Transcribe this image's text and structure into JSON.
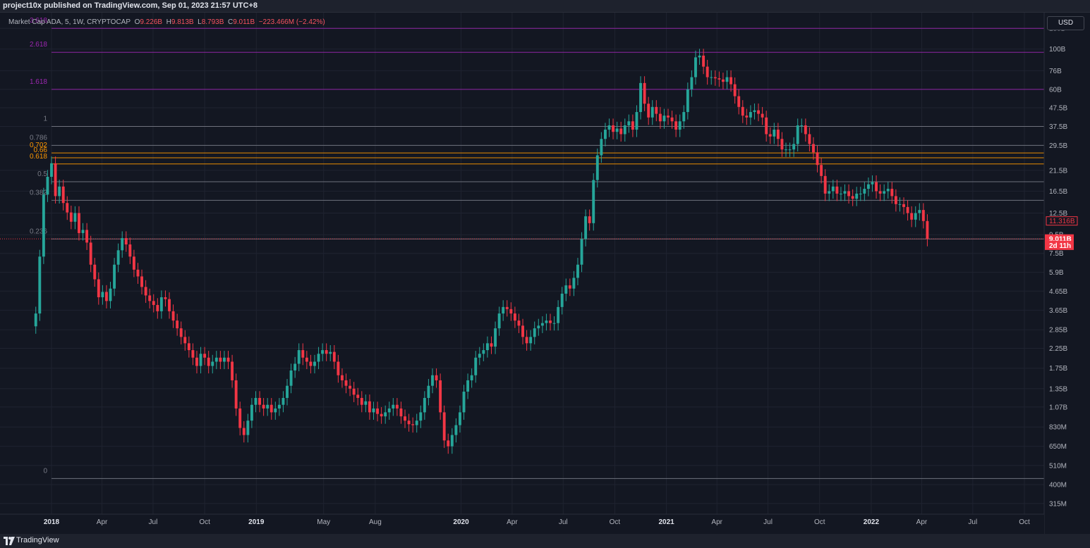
{
  "header": {
    "publisher_line": "project10x published on TradingView.com, Sep 01, 2023 21:57 UTC+8"
  },
  "legend": {
    "symbol": "Market Cap ADA, 5, 1W, CRYPTOCAP",
    "o_label": "O",
    "o_value": "9.226B",
    "h_label": "H",
    "h_value": "9.813B",
    "l_label": "L",
    "l_value": "8.793B",
    "c_label": "C",
    "c_value": "9.011B",
    "change": "−223.466M (−2.42%)"
  },
  "currency_button": "USD",
  "footer": {
    "brand": "TradingView"
  },
  "colors": {
    "background": "#131722",
    "up": "#26a69a",
    "down": "#f23645",
    "grid": "#1f2330",
    "fib_purple": "#9c27b0",
    "fib_orange": "#ff9800",
    "fib_gray": "#787b86",
    "price_label": "#f23645"
  },
  "chart_data": {
    "type": "candlestick",
    "scale": "log",
    "y_ticks": [
      "130B",
      "100B",
      "76B",
      "60B",
      "47.5B",
      "37.5B",
      "29.5B",
      "21.5B",
      "16.5B",
      "12.5B",
      "9.5B",
      "7.5B",
      "5.9B",
      "4.65B",
      "3.65B",
      "2.85B",
      "2.25B",
      "1.75B",
      "1.35B",
      "1.07B",
      "830M",
      "650M",
      "510M",
      "400M",
      "315M"
    ],
    "y_tick_values": [
      130,
      100,
      76,
      60,
      47.5,
      37.5,
      29.5,
      21.5,
      16.5,
      12.5,
      9.5,
      7.5,
      5.9,
      4.65,
      3.65,
      2.85,
      2.25,
      1.75,
      1.35,
      1.07,
      0.83,
      0.65,
      0.51,
      0.4,
      0.315
    ],
    "x_ticks": [
      {
        "label": "2018",
        "date": "2018-01-01",
        "year": true
      },
      {
        "label": "Apr",
        "date": "2018-04-01",
        "year": false
      },
      {
        "label": "Jul",
        "date": "2018-07-01",
        "year": false
      },
      {
        "label": "Oct",
        "date": "2018-10-01",
        "year": false
      },
      {
        "label": "2019",
        "date": "2019-01-01",
        "year": true
      },
      {
        "label": "May",
        "date": "2019-05-01",
        "year": false
      },
      {
        "label": "Aug",
        "date": "2019-08-01",
        "year": false
      },
      {
        "label": "2020",
        "date": "2020-01-01",
        "year": true
      },
      {
        "label": "Apr",
        "date": "2020-04-01",
        "year": false
      },
      {
        "label": "Jul",
        "date": "2020-07-01",
        "year": false
      },
      {
        "label": "Oct",
        "date": "2020-10-01",
        "year": false
      },
      {
        "label": "2021",
        "date": "2021-01-01",
        "year": true
      },
      {
        "label": "Apr",
        "date": "2021-04-01",
        "year": false
      },
      {
        "label": "Jul",
        "date": "2021-07-01",
        "year": false
      },
      {
        "label": "Oct",
        "date": "2021-10-01",
        "year": false
      },
      {
        "label": "2022",
        "date": "2022-01-01",
        "year": true
      },
      {
        "label": "Apr",
        "date": "2022-04-01",
        "year": false
      },
      {
        "label": "Jul",
        "date": "2022-07-01",
        "year": false
      },
      {
        "label": "Oct",
        "date": "2022-10-01",
        "year": false
      }
    ],
    "fib_levels": [
      {
        "label": "3.618",
        "value": 130,
        "color": "#9c27b0"
      },
      {
        "label": "2.618",
        "value": 96,
        "color": "#9c27b0"
      },
      {
        "label": "1.618",
        "value": 60,
        "color": "#9c27b0"
      },
      {
        "label": "1",
        "value": 37.5,
        "color": "#787b86"
      },
      {
        "label": "0.786",
        "value": 29.5,
        "color": "#787b86"
      },
      {
        "label": "0.702",
        "value": 26.8,
        "color": "#ff9800"
      },
      {
        "label": "0.66",
        "value": 25.2,
        "color": "#ff9800"
      },
      {
        "label": "0.618",
        "value": 23.3,
        "color": "#ff9800"
      },
      {
        "label": "0.5",
        "value": 18.6,
        "color": "#787b86"
      },
      {
        "label": "0.382",
        "value": 14.7,
        "color": "#787b86"
      },
      {
        "label": "0.236",
        "value": 9.0,
        "color": "#787b86"
      },
      {
        "label": "0",
        "value": 0.432,
        "color": "#787b86"
      }
    ],
    "price_labels": [
      {
        "text": "11.316B",
        "value": 11.316,
        "style": "outline"
      },
      {
        "text": "9.011B",
        "value": 9.011,
        "style": "filled"
      },
      {
        "text": "2d 11h",
        "value": 8.3,
        "style": "filled"
      }
    ],
    "current_price": 9.011,
    "weekly_closes": {
      "start_date": "2017-12-04",
      "values": [
        3.5,
        7.2,
        15.8,
        19.8,
        23.5,
        15.5,
        17.5,
        14.2,
        12.6,
        11.2,
        12.5,
        9.7,
        10.1,
        8.6,
        6.5,
        5.4,
        4.3,
        4.6,
        4.1,
        4.8,
        6.5,
        7.8,
        9.1,
        8.4,
        7.2,
        6.1,
        5.6,
        4.9,
        4.4,
        4.1,
        3.9,
        3.6,
        4.3,
        4.2,
        3.6,
        3.2,
        2.9,
        2.6,
        2.4,
        2.2,
        2.0,
        1.8,
        2.1,
        2.0,
        1.8,
        1.9,
        2.0,
        1.9,
        2.0,
        1.9,
        1.5,
        1.05,
        0.82,
        0.75,
        0.9,
        1.1,
        1.2,
        1.1,
        1.05,
        1.1,
        1.0,
        1.05,
        1.1,
        1.2,
        1.4,
        1.7,
        1.85,
        2.2,
        2.0,
        1.9,
        1.8,
        1.9,
        2.1,
        2.2,
        2.1,
        2.15,
        1.9,
        1.6,
        1.5,
        1.4,
        1.35,
        1.25,
        1.2,
        1.1,
        1.15,
        1.0,
        1.05,
        0.98,
        0.95,
        1.0,
        1.05,
        1.1,
        1.05,
        0.95,
        0.9,
        0.86,
        0.85,
        0.9,
        1.0,
        1.2,
        1.4,
        1.6,
        1.5,
        1.0,
        0.7,
        0.65,
        0.75,
        0.85,
        1.0,
        1.3,
        1.5,
        1.6,
        2.0,
        2.1,
        2.2,
        2.4,
        2.3,
        2.9,
        3.5,
        3.8,
        3.7,
        3.5,
        3.2,
        3.0,
        2.6,
        2.4,
        2.6,
        2.9,
        3.0,
        3.1,
        3.2,
        3.1,
        3.1,
        3.8,
        4.5,
        5.0,
        4.8,
        5.5,
        6.5,
        9.0,
        12.0,
        11.0,
        19.0,
        26.0,
        32.0,
        36.0,
        38.0,
        35.0,
        36.5,
        34.0,
        38.0,
        40.0,
        36.0,
        45.0,
        65.0,
        50.0,
        42.0,
        48.0,
        44.0,
        40.0,
        43.0,
        42.0,
        40.0,
        36.0,
        40.0,
        45.0,
        60.0,
        70.0,
        90.0,
        92.0,
        80.0,
        70.0,
        70.0,
        69.0,
        68.0,
        66.0,
        70.0,
        64.0,
        55.0,
        48.0,
        43.0,
        42.0,
        45.0,
        46.0,
        44.0,
        42.0,
        34.0,
        33.0,
        36.0,
        32.0,
        28.0,
        28.0,
        28.0,
        30.0,
        38.0,
        38.0,
        34.0,
        30.0,
        27.0,
        23.0,
        20.0,
        16.0,
        16.5,
        17.5,
        16.0,
        16.0,
        16.5,
        15.5,
        15.0,
        16.0,
        16.0,
        17.0,
        18.0,
        18.5,
        16.5,
        16.0,
        16.5,
        17.0,
        15.5,
        14.0,
        14.0,
        13.5,
        12.5,
        11.5,
        12.5,
        13.0,
        11.3,
        9.011
      ]
    }
  }
}
